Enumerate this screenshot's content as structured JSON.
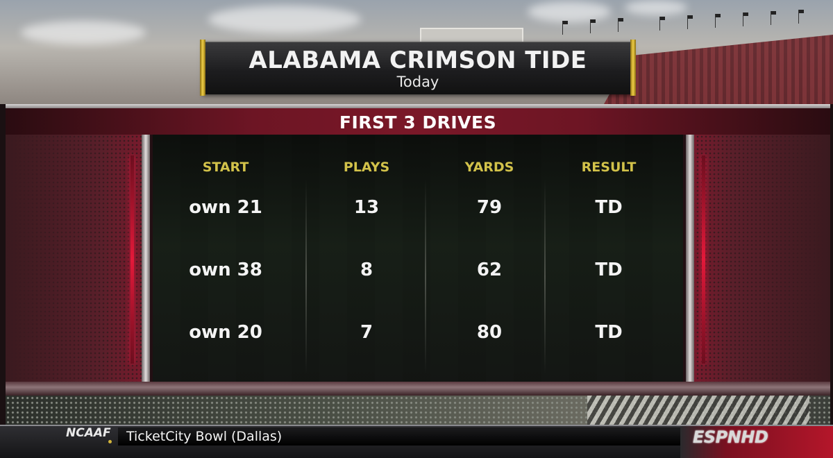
{
  "banner": {
    "team": "ALABAMA CRIMSON TIDE",
    "subtitle": "Today"
  },
  "panel": {
    "header": "FIRST 3 DRIVES",
    "columns": [
      "START",
      "PLAYS",
      "YARDS",
      "RESULT"
    ],
    "rows": [
      {
        "start": "own 21",
        "plays": "13",
        "yards": "79",
        "result": "TD"
      },
      {
        "start": "own 38",
        "plays": "8",
        "yards": "62",
        "result": "TD"
      },
      {
        "start": "own 20",
        "plays": "7",
        "yards": "80",
        "result": "TD"
      }
    ]
  },
  "ticker": {
    "league": "NCAAF",
    "event": "TicketCity Bowl (Dallas)",
    "network": "ESPNHD"
  },
  "colors": {
    "header_accent": "#7a1828",
    "column_header": "#d2c24a",
    "gold_trim": "#f0cf46"
  },
  "icons": {
    "network_logo": "espn-hd-logo"
  }
}
